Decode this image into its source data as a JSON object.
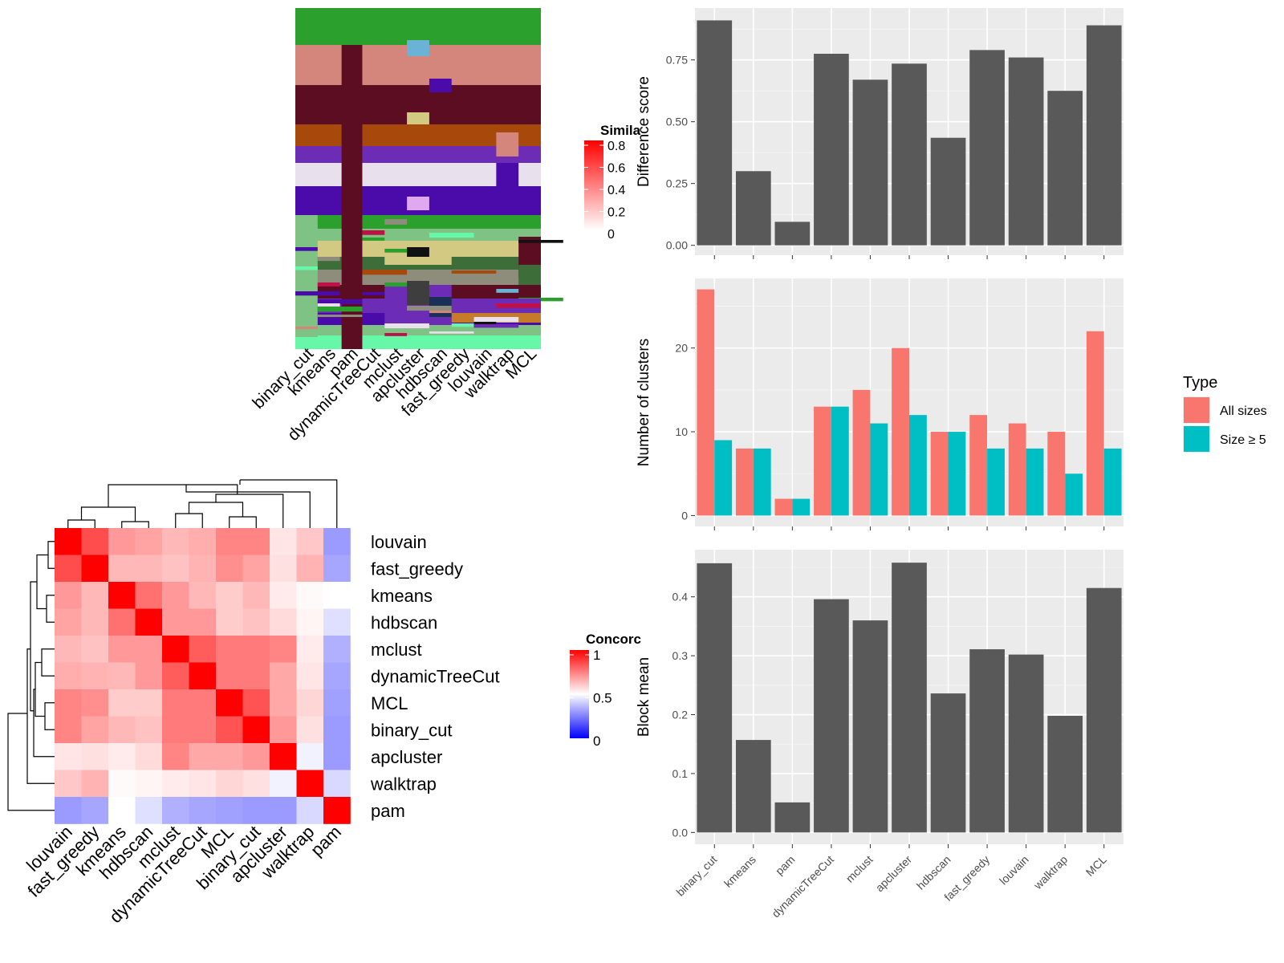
{
  "chart_data": [
    {
      "type": "heatmap",
      "panel": "similarity-matrix",
      "legend_title": "Simila",
      "legend_ticks": [
        "0.8",
        "0.6",
        "0.4",
        "0.2",
        "0"
      ],
      "colors": {
        "low": "#ffffff",
        "high": "#ff0000"
      }
    },
    {
      "type": "heatmap",
      "panel": "cluster-assignments",
      "x_labels": [
        "binary_cut",
        "kmeans",
        "pam",
        "dynamicTreeCut",
        "mclust",
        "apcluster",
        "hdbscan",
        "fast_greedy",
        "louvain",
        "walktrap",
        "MCL"
      ]
    },
    {
      "type": "heatmap",
      "panel": "concordance",
      "legend_title": "Concorc",
      "legend_ticks": [
        "1",
        "0.5",
        "0"
      ],
      "colors": {
        "low": "#0000ff",
        "mid": "#ffffff",
        "high": "#ff0000"
      },
      "order": [
        "louvain",
        "fast_greedy",
        "kmeans",
        "hdbscan",
        "mclust",
        "dynamicTreeCut",
        "MCL",
        "binary_cut",
        "apcluster",
        "walktrap",
        "pam"
      ],
      "matrix": [
        [
          1.0,
          0.85,
          0.7,
          0.68,
          0.64,
          0.66,
          0.74,
          0.74,
          0.55,
          0.61,
          0.18
        ],
        [
          0.85,
          1.0,
          0.64,
          0.64,
          0.62,
          0.65,
          0.72,
          0.68,
          0.56,
          0.65,
          0.22
        ],
        [
          0.7,
          0.64,
          1.0,
          0.78,
          0.7,
          0.64,
          0.6,
          0.64,
          0.54,
          0.51,
          0.5
        ],
        [
          0.68,
          0.64,
          0.78,
          1.0,
          0.7,
          0.7,
          0.6,
          0.62,
          0.57,
          0.52,
          0.4
        ],
        [
          0.64,
          0.62,
          0.7,
          0.7,
          1.0,
          0.82,
          0.76,
          0.76,
          0.74,
          0.54,
          0.25
        ],
        [
          0.66,
          0.65,
          0.64,
          0.7,
          0.82,
          1.0,
          0.76,
          0.76,
          0.67,
          0.55,
          0.22
        ],
        [
          0.74,
          0.72,
          0.6,
          0.6,
          0.76,
          0.76,
          1.0,
          0.84,
          0.67,
          0.58,
          0.2
        ],
        [
          0.74,
          0.68,
          0.64,
          0.62,
          0.76,
          0.76,
          0.84,
          1.0,
          0.7,
          0.56,
          0.18
        ],
        [
          0.55,
          0.56,
          0.54,
          0.57,
          0.74,
          0.67,
          0.67,
          0.7,
          1.0,
          0.46,
          0.18
        ],
        [
          0.61,
          0.65,
          0.51,
          0.52,
          0.54,
          0.55,
          0.58,
          0.56,
          0.46,
          1.0,
          0.38
        ],
        [
          0.18,
          0.22,
          0.5,
          0.4,
          0.25,
          0.22,
          0.2,
          0.18,
          0.18,
          0.38,
          1.0
        ]
      ]
    },
    {
      "type": "bar",
      "panel": "difference-score",
      "categories": [
        "binary_cut",
        "kmeans",
        "pam",
        "dynamicTreeCut",
        "mclust",
        "apcluster",
        "hdbscan",
        "fast_greedy",
        "louvain",
        "walktrap",
        "MCL"
      ],
      "values": [
        0.91,
        0.3,
        0.095,
        0.775,
        0.67,
        0.735,
        0.435,
        0.79,
        0.76,
        0.625,
        0.89
      ],
      "ylabel": "Difference score",
      "ylim": [
        -0.04,
        0.96
      ],
      "yticks": [
        0,
        0.25,
        0.5,
        0.75
      ],
      "ytick_labels": [
        "0.00",
        "0.25",
        "0.50",
        "0.75"
      ],
      "color": "#595959"
    },
    {
      "type": "bar",
      "panel": "number-of-clusters",
      "categories": [
        "binary_cut",
        "kmeans",
        "pam",
        "dynamicTreeCut",
        "mclust",
        "apcluster",
        "hdbscan",
        "fast_greedy",
        "louvain",
        "walktrap",
        "MCL"
      ],
      "series": [
        {
          "name": "All sizes",
          "color": "#F8766D",
          "values": [
            27,
            8,
            2,
            13,
            15,
            20,
            10,
            12,
            11,
            10,
            22
          ]
        },
        {
          "name": "Size ≥ 5",
          "color": "#00BFC4",
          "values": [
            9,
            8,
            2,
            13,
            11,
            12,
            10,
            8,
            8,
            5,
            8
          ]
        }
      ],
      "ylabel": "Number of clusters",
      "ylim": [
        -1.3,
        28.3
      ],
      "yticks": [
        0,
        10,
        20
      ],
      "legend_title": "Type",
      "legend_position": "right"
    },
    {
      "type": "bar",
      "panel": "block-mean",
      "categories": [
        "binary_cut",
        "kmeans",
        "pam",
        "dynamicTreeCut",
        "mclust",
        "apcluster",
        "hdbscan",
        "fast_greedy",
        "louvain",
        "walktrap",
        "MCL"
      ],
      "values": [
        0.457,
        0.157,
        0.051,
        0.396,
        0.36,
        0.458,
        0.236,
        0.311,
        0.302,
        0.198,
        0.415
      ],
      "ylabel": "Block mean",
      "ylim": [
        -0.02,
        0.48
      ],
      "yticks": [
        0,
        0.1,
        0.2,
        0.3,
        0.4
      ],
      "ytick_labels": [
        "0.0",
        "0.1",
        "0.2",
        "0.3",
        "0.4"
      ],
      "color": "#595959"
    }
  ]
}
